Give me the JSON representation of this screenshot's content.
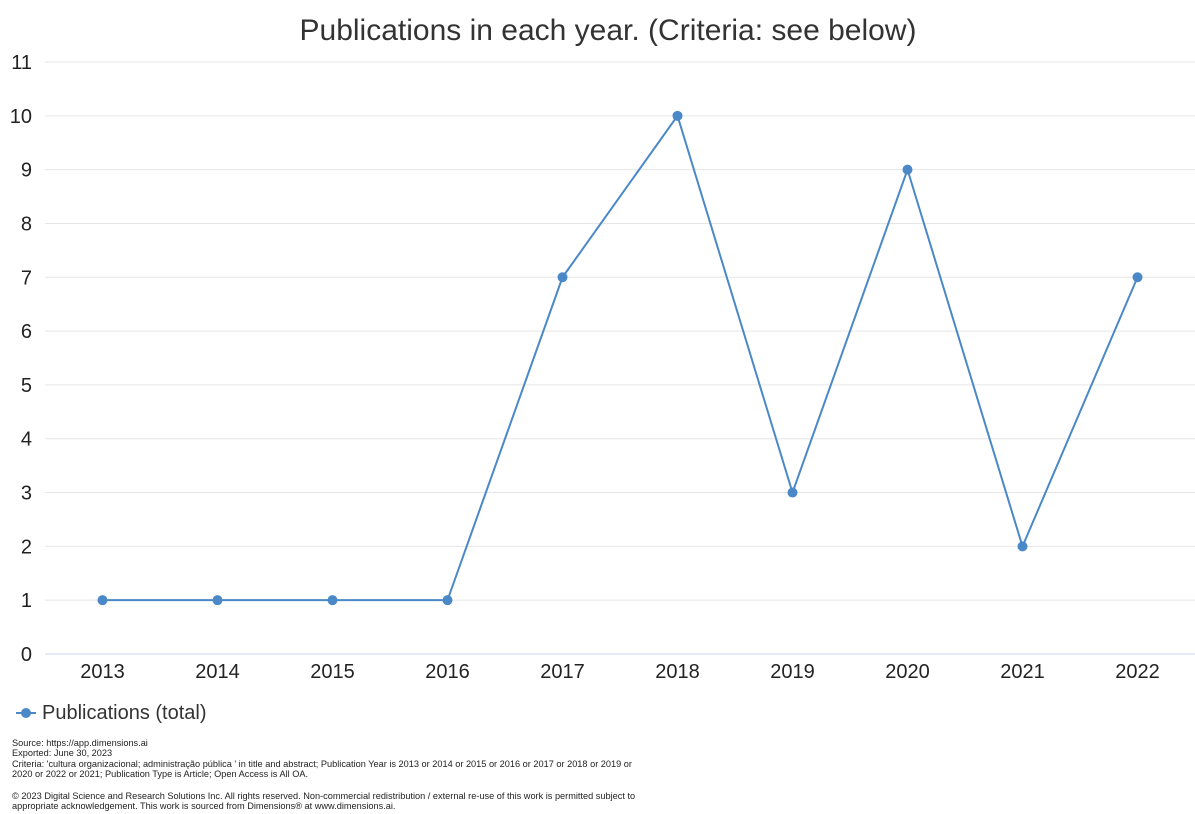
{
  "chart_data": {
    "type": "line",
    "title": "Publications in each year. (Criteria: see below)",
    "xlabel": "",
    "ylabel": "",
    "categories": [
      "2013",
      "2014",
      "2015",
      "2016",
      "2017",
      "2018",
      "2019",
      "2020",
      "2021",
      "2022"
    ],
    "series": [
      {
        "name": "Publications (total)",
        "values": [
          1,
          1,
          1,
          1,
          7,
          10,
          3,
          9,
          2,
          7
        ],
        "color": "#4a88c8"
      }
    ],
    "yticks": [
      "0",
      "1",
      "2",
      "3",
      "4",
      "5",
      "6",
      "7",
      "8",
      "9",
      "10",
      "11"
    ],
    "ylim": [
      0,
      11
    ],
    "grid": true,
    "legend_position": "bottom-left"
  },
  "footer": {
    "source": "Source: https://app.dimensions.ai",
    "exported": "Exported: June 30, 2023",
    "criteria": "Criteria: 'cultura organizacional; administração pública ' in title and abstract; Publication Year is 2013 or 2014 or 2015 or 2016 or 2017 or 2018 or 2019 or 2020 or 2022 or 2021; Publication Type is Article; Open Access is All OA.",
    "copyright": "© 2023 Digital Science and Research Solutions Inc. All rights reserved. Non-commercial redistribution / external re-use of this work is permitted subject to appropriate acknowledgement. This work is sourced from Dimensions® at www.dimensions.ai."
  }
}
